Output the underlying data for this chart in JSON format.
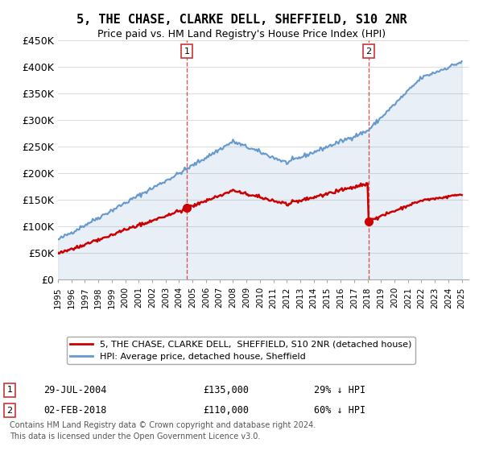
{
  "title": "5, THE CHASE, CLARKE DELL, SHEFFIELD, S10 2NR",
  "subtitle": "Price paid vs. HM Land Registry's House Price Index (HPI)",
  "hpi_color": "#6699cc",
  "price_color": "#cc0000",
  "marker_color": "#cc0000",
  "annotation_color": "#cc3333",
  "dashed_color": "#cc3333",
  "bg_color": "#ffffff",
  "grid_color": "#dddddd",
  "ylim": [
    0,
    450000
  ],
  "yticks": [
    0,
    50000,
    100000,
    150000,
    200000,
    250000,
    300000,
    350000,
    400000,
    450000
  ],
  "ytick_labels": [
    "£0",
    "£50K",
    "£100K",
    "£150K",
    "£200K",
    "£250K",
    "£300K",
    "£350K",
    "£400K",
    "£450K"
  ],
  "xlim_start": 1995.0,
  "xlim_end": 2025.5,
  "sale1_x": 2004.57,
  "sale1_y": 135000,
  "sale2_x": 2018.08,
  "sale2_y": 110000,
  "legend_label_red": "5, THE CHASE, CLARKE DELL,  SHEFFIELD, S10 2NR (detached house)",
  "legend_label_blue": "HPI: Average price, detached house, Sheffield",
  "annotation1_label": "1",
  "annotation2_label": "2",
  "table_row1": "1     29-JUL-2004          £135,000        29% ↓ HPI",
  "table_row2": "2     02-FEB-2018          £110,000        60% ↓ HPI",
  "footer": "Contains HM Land Registry data © Crown copyright and database right 2024.\nThis data is licensed under the Open Government Licence v3.0."
}
